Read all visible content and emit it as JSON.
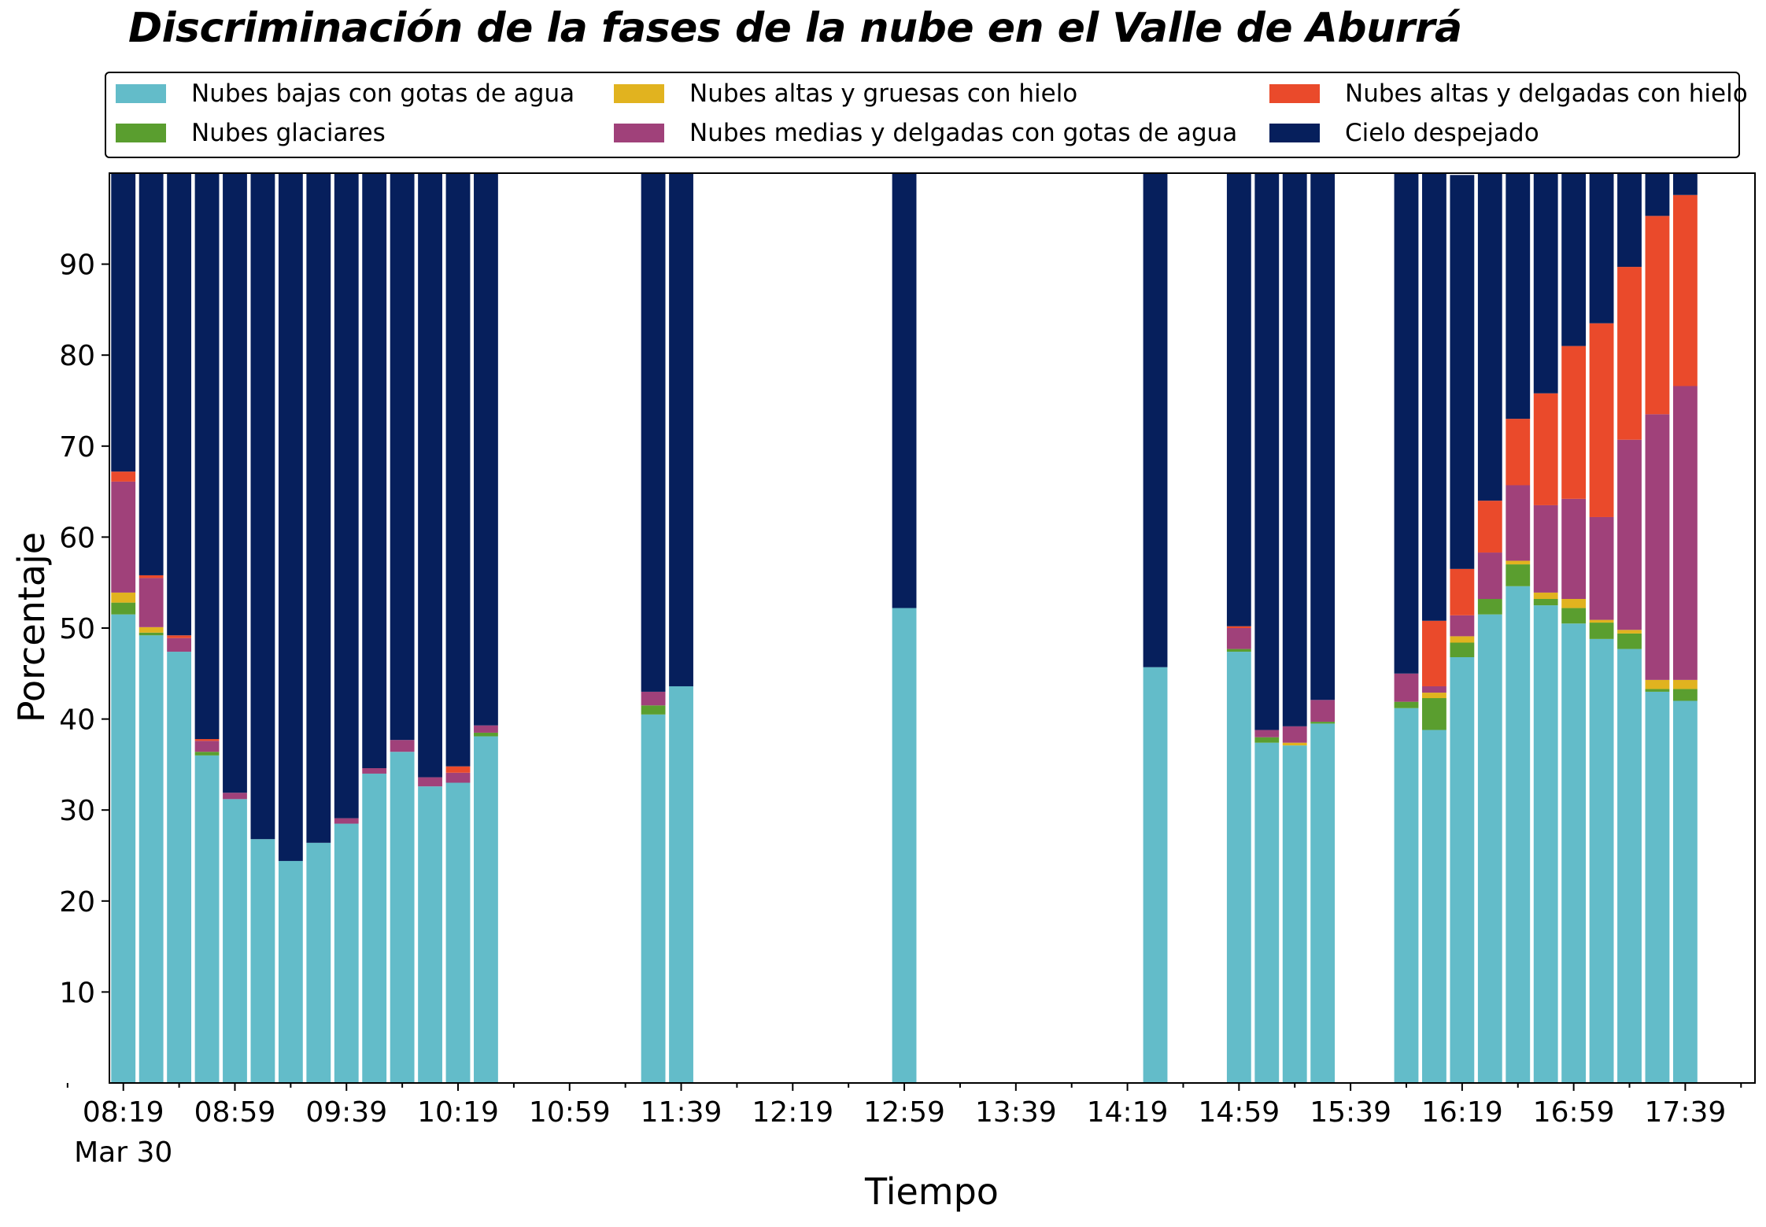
{
  "chart_data": {
    "type": "bar",
    "stacked": true,
    "title": "Discriminación de la fases de la nube en el Valle de Aburrá",
    "xlabel": "Tiempo",
    "ylabel": "Porcentaje",
    "ylim": [
      0,
      100
    ],
    "yticks": [
      10,
      20,
      30,
      40,
      50,
      60,
      70,
      80,
      90
    ],
    "xtick_labels": [
      "08:19",
      "08:59",
      "09:39",
      "10:19",
      "10:59",
      "11:39",
      "12:19",
      "12:59",
      "13:39",
      "14:19",
      "14:59",
      "15:39",
      "16:19",
      "16:59",
      "17:39"
    ],
    "xtick_sublabel": "Mar 30",
    "legend_placement": "top, 3 columns",
    "grid": false,
    "x_start": "08:19",
    "x_end": "17:59",
    "bar_interval_minutes": 10,
    "times": [
      "08:19",
      "08:29",
      "08:39",
      "08:49",
      "08:59",
      "09:09",
      "09:19",
      "09:29",
      "09:39",
      "09:49",
      "09:59",
      "10:09",
      "10:19",
      "10:29",
      "11:29",
      "11:39",
      "12:59",
      "14:29",
      "14:59",
      "15:09",
      "15:19",
      "15:29",
      "15:59",
      "16:09",
      "16:19",
      "16:29",
      "16:39",
      "16:49",
      "16:59",
      "17:09",
      "17:19",
      "17:29",
      "17:39"
    ],
    "series": [
      {
        "name": "Nubes bajas con gotas de agua",
        "color": "#63bcc9",
        "values": [
          51.5,
          49.2,
          47.4,
          36,
          31.2,
          26.8,
          24.4,
          26.4,
          28.5,
          34,
          36.4,
          32.6,
          33,
          38.1,
          40.5,
          43.6,
          52.2,
          45.7,
          47.4,
          37.4,
          37.1,
          39.5,
          41.2,
          38.8,
          46.8,
          51.5,
          54.6,
          52.5,
          50.5,
          48.8,
          47.7,
          43,
          42
        ]
      },
      {
        "name": "Nubes glaciares",
        "color": "#5a9e2f",
        "values": [
          1.3,
          0.3,
          0,
          0.4,
          0,
          0,
          0,
          0,
          0,
          0,
          0,
          0,
          0,
          0.4,
          1,
          0,
          0,
          0,
          0.3,
          0.6,
          0,
          0.2,
          0.7,
          3.5,
          1.6,
          1.7,
          2.4,
          0.7,
          1.7,
          1.8,
          1.7,
          0.3,
          1.3
        ]
      },
      {
        "name": "Nubes altas y gruesas con hielo",
        "color": "#e1b31f",
        "values": [
          1.1,
          0.6,
          0,
          0,
          0,
          0,
          0,
          0,
          0,
          0,
          0,
          0,
          0,
          0,
          0,
          0,
          0,
          0,
          0,
          0,
          0.3,
          0,
          0,
          0.6,
          0.7,
          0,
          0.4,
          0.7,
          1,
          0.3,
          0.4,
          1,
          1
        ]
      },
      {
        "name": "Nubes medias y delgadas con gotas de agua",
        "color": "#a0417a",
        "values": [
          12.2,
          5.4,
          1.5,
          1.2,
          0.7,
          0,
          0,
          0,
          0.6,
          0.6,
          1.3,
          1,
          1.1,
          0.8,
          1.5,
          0,
          0,
          0,
          2.3,
          0.8,
          1.8,
          2.4,
          3.1,
          0.7,
          2.3,
          5.1,
          8.3,
          9.6,
          11,
          11.3,
          20.9,
          29.2,
          32.3
        ]
      },
      {
        "name": "Nubes altas y delgadas con hielo",
        "color": "#ea4a2b",
        "values": [
          1.1,
          0.3,
          0.3,
          0.2,
          0,
          0,
          0,
          0,
          0,
          0,
          0,
          0,
          0.7,
          0,
          0,
          0,
          0,
          0,
          0.2,
          0,
          0,
          0,
          0,
          7.2,
          5.1,
          5.7,
          7.3,
          12.3,
          16.8,
          21.3,
          19,
          21.8,
          21
        ]
      },
      {
        "name": "Cielo despejado",
        "color": "#061f5c",
        "values": [
          32.9,
          44.3,
          50.8,
          62.2,
          68.1,
          73.2,
          75.6,
          73.6,
          70.9,
          65.4,
          62.3,
          66.4,
          65.2,
          60.7,
          57,
          56.4,
          47.8,
          54.3,
          49.8,
          61.2,
          60.8,
          57.9,
          55,
          49.2,
          43.3,
          36,
          27.1,
          24.2,
          19,
          16.5,
          10.3,
          4.7,
          2.4
        ]
      }
    ]
  }
}
